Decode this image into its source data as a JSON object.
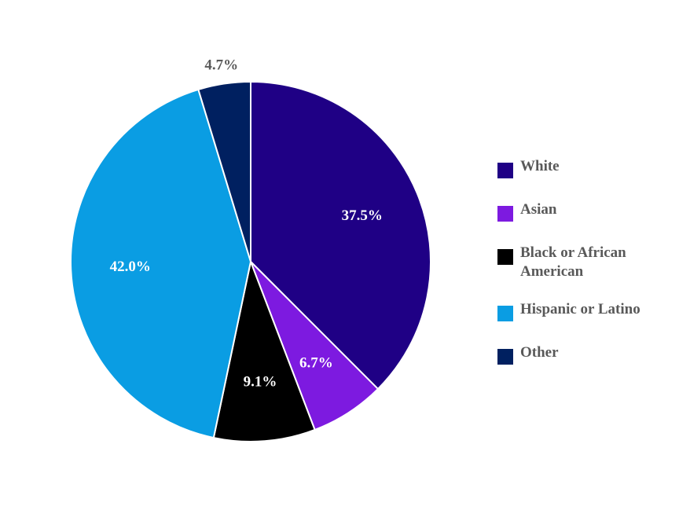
{
  "chart_data": {
    "type": "pie",
    "title": "",
    "categories": [
      "White",
      "Asian",
      "Black or African American",
      "Hispanic or Latino",
      "Other"
    ],
    "values": [
      37.5,
      6.7,
      9.1,
      42.0,
      4.7
    ],
    "labels": [
      "37.5%",
      "6.7%",
      "9.1%",
      "42.0%",
      "4.7%"
    ],
    "colors": [
      "#1f0085",
      "#7d1ae0",
      "#000000",
      "#0a9de3",
      "#002060"
    ],
    "label_colors": [
      "#ffffff",
      "#ffffff",
      "#ffffff",
      "#ffffff",
      "#595959"
    ],
    "label_placement": [
      "inside",
      "inside",
      "inside",
      "inside",
      "outside"
    ],
    "start_angle": "12 o'clock",
    "direction": "clockwise",
    "legend_position": "right"
  }
}
